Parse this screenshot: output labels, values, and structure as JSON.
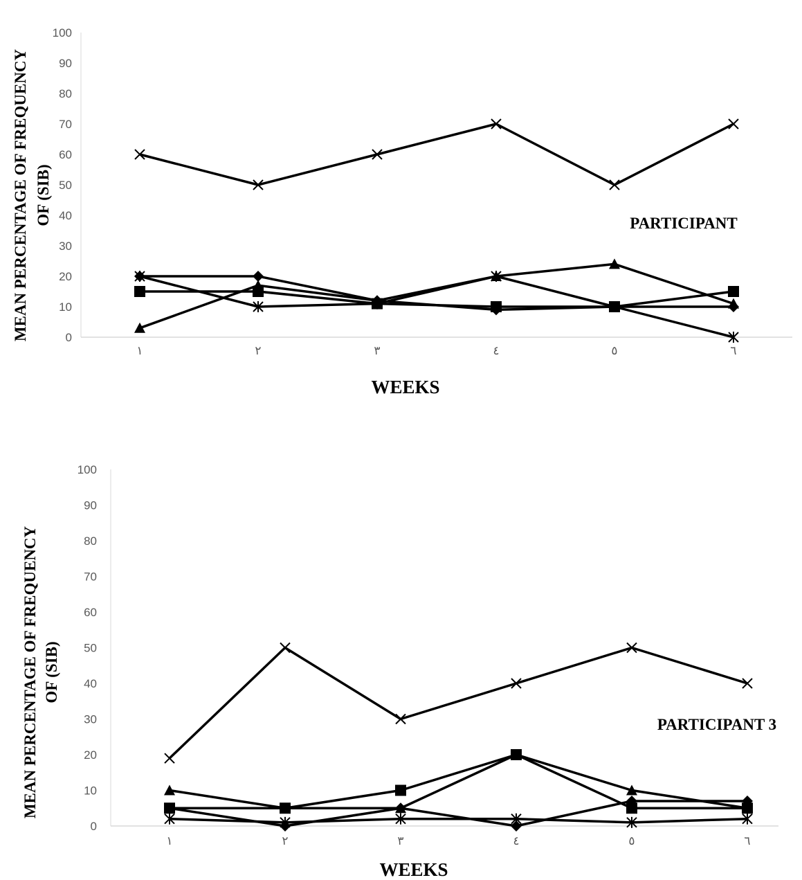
{
  "chart_data": [
    {
      "type": "line",
      "title": "",
      "xlabel": "WEEKS",
      "ylabel": [
        "MEAN PERCENTAGE OF FREQUENCY",
        "OF (SIB)"
      ],
      "annotation": "PARTICIPANT",
      "categories": [
        "١",
        "٢",
        "٣",
        "٤",
        "٥",
        "٦"
      ],
      "ylim": [
        0,
        100
      ],
      "yticks": [
        "0",
        "10",
        "20",
        "30",
        "40",
        "50",
        "60",
        "70",
        "80",
        "90",
        "100"
      ],
      "grid": false,
      "series": [
        {
          "marker": "x",
          "values": [
            60,
            50,
            60,
            70,
            50,
            70
          ]
        },
        {
          "marker": "diamond",
          "values": [
            20,
            20,
            12,
            9,
            10,
            10
          ]
        },
        {
          "marker": "square",
          "values": [
            15,
            15,
            11,
            10,
            10,
            15
          ]
        },
        {
          "marker": "triangle",
          "values": [
            3,
            17,
            12,
            20,
            24,
            11
          ]
        },
        {
          "marker": "asterisk",
          "values": [
            20,
            10,
            11,
            20,
            10,
            0
          ]
        }
      ]
    },
    {
      "type": "line",
      "title": "",
      "xlabel": "WEEKS",
      "ylabel": [
        "MEAN PERCENTAGE OF FREQUENCY",
        "OF (SIB)"
      ],
      "annotation": "PARTICIPANT 3",
      "categories": [
        "١",
        "٢",
        "٣",
        "٤",
        "٥",
        "٦"
      ],
      "ylim": [
        0,
        100
      ],
      "yticks": [
        "0",
        "10",
        "20",
        "30",
        "40",
        "50",
        "60",
        "70",
        "80",
        "90",
        "100"
      ],
      "grid": false,
      "series": [
        {
          "marker": "x",
          "values": [
            19,
            50,
            30,
            40,
            50,
            40
          ]
        },
        {
          "marker": "diamond",
          "values": [
            5,
            0,
            5,
            0,
            7,
            7
          ]
        },
        {
          "marker": "square",
          "values": [
            5,
            5,
            10,
            20,
            5,
            5
          ]
        },
        {
          "marker": "triangle",
          "values": [
            10,
            5,
            5,
            20,
            10,
            5
          ]
        },
        {
          "marker": "asterisk",
          "values": [
            2,
            1,
            2,
            2,
            1,
            2
          ]
        }
      ]
    }
  ]
}
